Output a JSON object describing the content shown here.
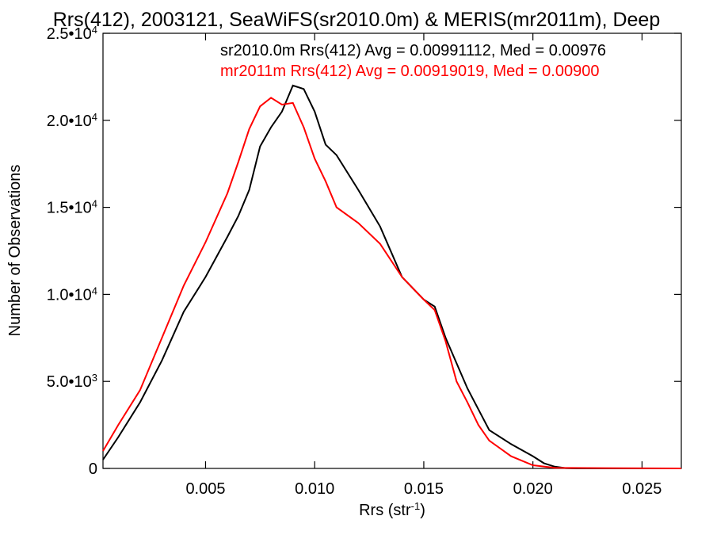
{
  "chart_data": {
    "type": "line",
    "title": "Rrs(412), 2003121, SeaWiFS(sr2010.0m) & MERIS(mr2011m), Deep",
    "xlabel": "Rrs (str",
    "xlabel_sup": "-1",
    "xlabel_close": ")",
    "ylabel": "Number of Observations",
    "xlim": [
      0.0003,
      0.0268
    ],
    "ylim": [
      0,
      25000
    ],
    "x_ticks": [
      {
        "value": 0.005,
        "label": "0.005"
      },
      {
        "value": 0.01,
        "label": "0.010"
      },
      {
        "value": 0.015,
        "label": "0.015"
      },
      {
        "value": 0.02,
        "label": "0.020"
      },
      {
        "value": 0.025,
        "label": "0.025"
      }
    ],
    "y_ticks": [
      {
        "value": 0,
        "base": "0",
        "exp": ""
      },
      {
        "value": 5000,
        "base": "5.0•10",
        "exp": "3"
      },
      {
        "value": 10000,
        "base": "1.0•10",
        "exp": "4"
      },
      {
        "value": 15000,
        "base": "1.5•10",
        "exp": "4"
      },
      {
        "value": 20000,
        "base": "2.0•10",
        "exp": "4"
      },
      {
        "value": 25000,
        "base": "2.5•10",
        "exp": "4"
      }
    ],
    "grid": false,
    "series": [
      {
        "name": "sr2010.0m",
        "stat_label": "sr2010.0m Rrs(412) Avg = 0.00991112, Med = 0.00976",
        "color": "#000000",
        "x": [
          0.0003,
          0.001,
          0.002,
          0.003,
          0.004,
          0.005,
          0.006,
          0.0065,
          0.007,
          0.0075,
          0.008,
          0.0085,
          0.009,
          0.0095,
          0.01,
          0.0105,
          0.011,
          0.012,
          0.013,
          0.014,
          0.015,
          0.0155,
          0.016,
          0.017,
          0.018,
          0.019,
          0.02,
          0.0205,
          0.021,
          0.0215,
          0.022,
          0.0268
        ],
        "y": [
          500,
          1800,
          3800,
          6200,
          9000,
          11000,
          13300,
          14500,
          16000,
          18500,
          19600,
          20500,
          22000,
          21800,
          20500,
          18600,
          18000,
          16000,
          13900,
          11000,
          9700,
          9300,
          7500,
          4600,
          2200,
          1400,
          700,
          300,
          100,
          20,
          0,
          0
        ]
      },
      {
        "name": "mr2011m",
        "stat_label": "mr2011m Rrs(412) Avg = 0.00919019, Med = 0.00900",
        "color": "#ff0000",
        "x": [
          0.0003,
          0.001,
          0.002,
          0.003,
          0.004,
          0.005,
          0.006,
          0.0065,
          0.007,
          0.0075,
          0.008,
          0.0085,
          0.009,
          0.0095,
          0.01,
          0.0105,
          0.011,
          0.012,
          0.013,
          0.014,
          0.015,
          0.0155,
          0.016,
          0.0165,
          0.017,
          0.0175,
          0.018,
          0.019,
          0.02,
          0.021,
          0.0268
        ],
        "y": [
          1000,
          2500,
          4500,
          7500,
          10500,
          13000,
          15800,
          17600,
          19500,
          20800,
          21300,
          20900,
          21000,
          19600,
          17800,
          16500,
          15000,
          14100,
          12900,
          11000,
          9700,
          9100,
          7300,
          5000,
          3800,
          2500,
          1600,
          700,
          180,
          30,
          0
        ]
      }
    ]
  }
}
